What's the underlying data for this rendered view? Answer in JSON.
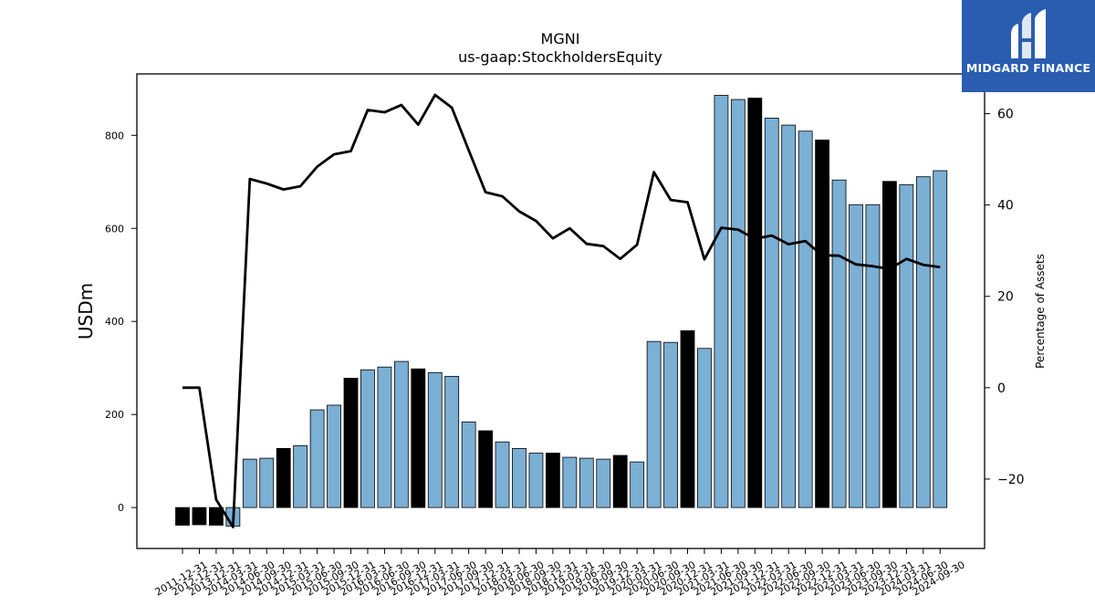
{
  "chart_data": {
    "type": "bar",
    "title": "MGNI",
    "subtitle": "us-gaap:StockholdersEquity",
    "ylabel": "USDm",
    "y2label": "Percentage of Assets",
    "ylim": [
      -88,
      932
    ],
    "y2lim": [
      -35.2,
      68.7
    ],
    "yticks": [
      0,
      200,
      400,
      600,
      800
    ],
    "y2ticks": [
      -20,
      0,
      20,
      40,
      60
    ],
    "categories": [
      "2011-12-31",
      "2012-12-31",
      "2013-12-31",
      "2014-03-31",
      "2014-06-30",
      "2014-09-30",
      "2014-12-31",
      "2015-03-31",
      "2015-06-30",
      "2015-09-30",
      "2015-12-31",
      "2016-03-31",
      "2016-06-30",
      "2016-09-30",
      "2016-12-31",
      "2017-03-31",
      "2017-06-30",
      "2017-09-30",
      "2017-12-31",
      "2018-03-31",
      "2018-06-30",
      "2018-09-30",
      "2018-12-31",
      "2019-03-31",
      "2019-06-30",
      "2019-09-30",
      "2019-12-31",
      "2020-03-31",
      "2020-06-30",
      "2020-09-30",
      "2020-12-31",
      "2021-03-31",
      "2021-06-30",
      "2021-09-30",
      "2021-12-31",
      "2022-03-31",
      "2022-06-30",
      "2022-09-30",
      "2022-12-31",
      "2023-03-31",
      "2023-06-30",
      "2023-09-30",
      "2023-12-31",
      "2024-03-31",
      "2024-06-30",
      "2024-09-30"
    ],
    "series": [
      {
        "kind": "bar",
        "values": [
          -38,
          -37,
          -38,
          -40,
          104,
          106,
          127,
          133,
          210,
          220,
          278,
          296,
          302,
          314,
          298,
          290,
          282,
          184,
          165,
          141,
          127,
          117,
          117,
          108,
          106,
          104,
          112,
          98,
          357,
          355,
          380,
          342,
          886,
          877,
          880,
          837,
          822,
          809,
          790,
          704,
          651,
          651,
          701,
          694,
          711,
          724
        ],
        "annual": [
          true,
          true,
          true,
          false,
          false,
          false,
          true,
          false,
          false,
          false,
          true,
          false,
          false,
          false,
          true,
          false,
          false,
          false,
          true,
          false,
          false,
          false,
          true,
          false,
          false,
          false,
          true,
          false,
          false,
          false,
          true,
          false,
          false,
          false,
          true,
          false,
          false,
          false,
          true,
          false,
          false,
          false,
          true,
          false,
          false,
          false
        ],
        "color": "#7bafd4",
        "annual_color": "#000000"
      },
      {
        "kind": "line",
        "axis": "right",
        "values": [
          0,
          0,
          -24.5,
          -30.5,
          45.7,
          44.7,
          43.4,
          44.1,
          48.4,
          51.1,
          51.8,
          60.8,
          60.3,
          61.9,
          57.6,
          64.1,
          61.3,
          52.0,
          42.8,
          41.9,
          38.6,
          36.5,
          32.7,
          34.9,
          31.5,
          31.0,
          28.2,
          31.3,
          47.2,
          41.1,
          40.6,
          28.1,
          35.0,
          34.6,
          32.6,
          33.3,
          31.4,
          32.1,
          29.0,
          28.9,
          27.0,
          26.6,
          26.0,
          28.2,
          26.9,
          26.4
        ],
        "color": "#000000"
      }
    ]
  },
  "logo": {
    "text": "MIDGARD FINANCE",
    "bg_color": "#2a5db0",
    "text_color": "#ffffff"
  }
}
